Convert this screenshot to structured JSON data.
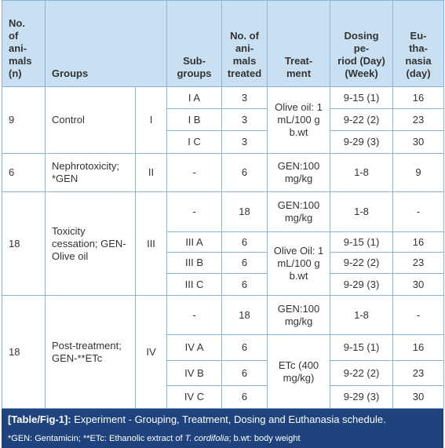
{
  "table": {
    "headers": [
      "No.\nof\nani-\nmals\n(n)",
      "Groups",
      "Sub-\ngroups",
      "No. of\nani-\nmals\ntreated",
      "Treat-\nment",
      "Dosing\npe-\nriod (Day)\n(Week)",
      "Eu-\ntha-\nnasia\n(day)"
    ],
    "groups": [
      {
        "n": 9,
        "name": "Control",
        "numeral": "I",
        "treatments": [
          {
            "treatment": "Olive oil: 1 mL/100 g b.wt",
            "subgroups": [
              {
                "subgroup": "I A",
                "treated": 3,
                "dosing": "9-15 (1)",
                "euthanasia": 16
              },
              {
                "subgroup": "I B",
                "treated": 3,
                "dosing": "9-22 (2)",
                "euthanasia": 23
              },
              {
                "subgroup": "I C",
                "treated": 3,
                "dosing": "9-29 (3)",
                "euthanasia": 30
              }
            ]
          }
        ]
      },
      {
        "n": 6,
        "name": "Nephrotoxicity; *GEN",
        "numeral": "II",
        "treatments": [
          {
            "treatment": "GEN:100 mg/kg",
            "subgroups": [
              {
                "subgroup": "-",
                "treated": 6,
                "dosing": "1-8",
                "euthanasia": 9
              }
            ]
          }
        ]
      },
      {
        "n": 18,
        "name": "Toxicity cessation; GEN-Olive oil",
        "numeral": "III",
        "treatments": [
          {
            "treatment": "GEN:100 mg/kg",
            "subgroups": [
              {
                "subgroup": "-",
                "treated": 18,
                "dosing": "1-8",
                "euthanasia": "-"
              }
            ]
          },
          {
            "treatment": "Olive Oil: 1 mL/100 g b.wt",
            "subgroups": [
              {
                "subgroup": "III A",
                "treated": 6,
                "dosing": "9-15 (1)",
                "euthanasia": 16
              },
              {
                "subgroup": "III B",
                "treated": 6,
                "dosing": "9-22 (2)",
                "euthanasia": 23
              },
              {
                "subgroup": "III C",
                "treated": 6,
                "dosing": "9-29 (3)",
                "euthanasia": 30
              }
            ]
          }
        ]
      },
      {
        "n": 18,
        "name": "Post-treatment; GEN-**ETc",
        "numeral": "IV",
        "treatments": [
          {
            "treatment": "GEN:100 mg/kg",
            "subgroups": [
              {
                "subgroup": "-",
                "treated": 18,
                "dosing": "1-8",
                "euthanasia": "-"
              }
            ]
          },
          {
            "treatment": "ETc (400 mg/kg)",
            "subgroups": [
              {
                "subgroup": "IV A",
                "treated": 6,
                "dosing": "9-15 (1)",
                "euthanasia": 16
              },
              {
                "subgroup": "IV B",
                "treated": 6,
                "dosing": "9-22 (2)",
                "euthanasia": 23
              },
              {
                "subgroup": "IV C",
                "treated": 6,
                "dosing": "9-29 (3)",
                "euthanasia": 30
              }
            ]
          }
        ]
      }
    ]
  },
  "caption": {
    "label": "[Table/Fig-1]:",
    "text": "Experiment - Grouping, Treatment, Dosing and Euthanasia schedule."
  },
  "footnote": [
    "*GEN: Gentamicin; **ETc: Ethanolic extract of ",
    "T. cordifolia",
    "; b.wt: body weight"
  ]
}
